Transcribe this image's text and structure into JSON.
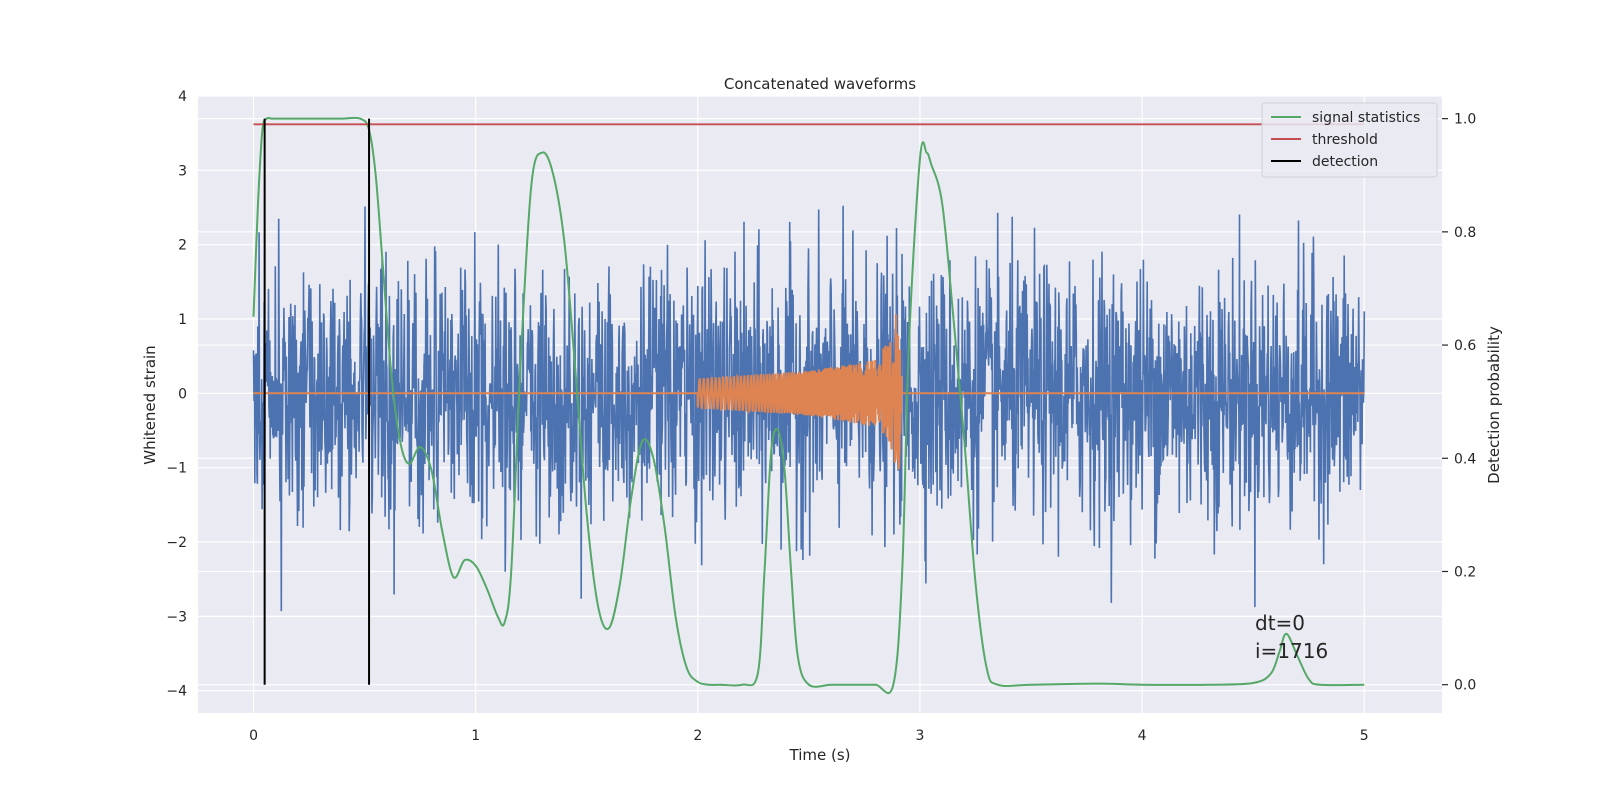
{
  "chart_data": {
    "type": "line",
    "title": "Concatenated waveforms",
    "xlabel": "Time (s)",
    "ylabel": "Whitened strain",
    "y2label": "Detection probability",
    "xlim": [
      -0.25,
      5.35
    ],
    "ylim": [
      -4.3,
      4.0
    ],
    "y2lim": [
      -0.05,
      1.04
    ],
    "x_ticks": [
      0,
      1,
      2,
      3,
      4,
      5
    ],
    "x_tick_labels": [
      "0",
      "1",
      "2",
      "3",
      "4",
      "5"
    ],
    "y_ticks": [
      -4,
      -3,
      -2,
      -1,
      0,
      1,
      2,
      3,
      4
    ],
    "y_tick_labels": [
      "−4",
      "−3",
      "−2",
      "−1",
      "0",
      "1",
      "2",
      "3",
      "4"
    ],
    "y2_ticks": [
      0.0,
      0.2,
      0.4,
      0.6,
      0.8,
      1.0
    ],
    "y2_tick_labels": [
      "0.0",
      "0.2",
      "0.4",
      "0.6",
      "0.8",
      "1.0"
    ],
    "grid": true,
    "legend_position": "top-right",
    "colors": {
      "noise": "#4c72b0",
      "waveform": "#dd8452",
      "signal_statistics": "#55a868",
      "threshold": "#c44e52",
      "detection": "#000000",
      "background": "#eaeaf2",
      "grid": "#ffffff"
    },
    "series": [
      {
        "name": "",
        "axis": "left",
        "description_kind": "noise",
        "x_range": [
          0,
          5
        ],
        "std": 0.85
      },
      {
        "name": "",
        "axis": "left",
        "description_kind": "chirp",
        "x": [
          0.0,
          2.0,
          2.5,
          2.8,
          2.88,
          2.9,
          2.92,
          5.0
        ],
        "amplitude": [
          0.0,
          0.2,
          0.3,
          0.45,
          0.8,
          1.4,
          0.0,
          0.0
        ]
      },
      {
        "name": "signal statistics",
        "axis": "right",
        "x": [
          0.0,
          0.02,
          0.04,
          0.06,
          0.08,
          0.1,
          0.2,
          0.3,
          0.4,
          0.48,
          0.52,
          0.55,
          0.58,
          0.62,
          0.66,
          0.7,
          0.75,
          0.8,
          0.85,
          0.9,
          0.95,
          1.0,
          1.05,
          1.1,
          1.13,
          1.16,
          1.2,
          1.25,
          1.3,
          1.35,
          1.4,
          1.45,
          1.5,
          1.55,
          1.6,
          1.65,
          1.7,
          1.75,
          1.8,
          1.85,
          1.9,
          1.95,
          2.0,
          2.05,
          2.1,
          2.2,
          2.27,
          2.3,
          2.33,
          2.36,
          2.39,
          2.42,
          2.45,
          2.5,
          2.6,
          2.7,
          2.8,
          2.88,
          2.92,
          2.95,
          3.0,
          3.03,
          3.05,
          3.1,
          3.15,
          3.2,
          3.25,
          3.3,
          3.35,
          3.5,
          3.8,
          4.0,
          4.3,
          4.5,
          4.58,
          4.62,
          4.65,
          4.7,
          4.75,
          4.8,
          5.0
        ],
        "values": [
          0.65,
          0.85,
          0.98,
          1.0,
          1.0,
          1.0,
          1.0,
          1.0,
          1.0,
          1.0,
          0.98,
          0.9,
          0.75,
          0.55,
          0.43,
          0.39,
          0.42,
          0.38,
          0.27,
          0.19,
          0.22,
          0.21,
          0.17,
          0.12,
          0.11,
          0.2,
          0.55,
          0.88,
          0.94,
          0.9,
          0.78,
          0.55,
          0.3,
          0.14,
          0.1,
          0.18,
          0.33,
          0.43,
          0.4,
          0.28,
          0.12,
          0.03,
          0.005,
          0.0,
          0.0,
          0.0,
          0.02,
          0.2,
          0.41,
          0.45,
          0.38,
          0.2,
          0.05,
          0.0,
          0.0,
          0.0,
          0.0,
          0.0,
          0.2,
          0.6,
          0.93,
          0.94,
          0.92,
          0.85,
          0.65,
          0.43,
          0.18,
          0.03,
          0.0,
          0.0,
          0.002,
          0.0,
          0.0,
          0.003,
          0.02,
          0.06,
          0.09,
          0.05,
          0.01,
          0.0,
          0.0
        ]
      },
      {
        "name": "threshold",
        "axis": "right",
        "x": [
          0.0,
          5.0
        ],
        "values": [
          0.99,
          0.99
        ]
      },
      {
        "name": "detection",
        "axis": "right",
        "x_lines": [
          0.05,
          0.52
        ],
        "range": [
          0.0,
          1.0
        ]
      }
    ],
    "annotations": [
      "dt=0",
      "i=1716"
    ]
  }
}
